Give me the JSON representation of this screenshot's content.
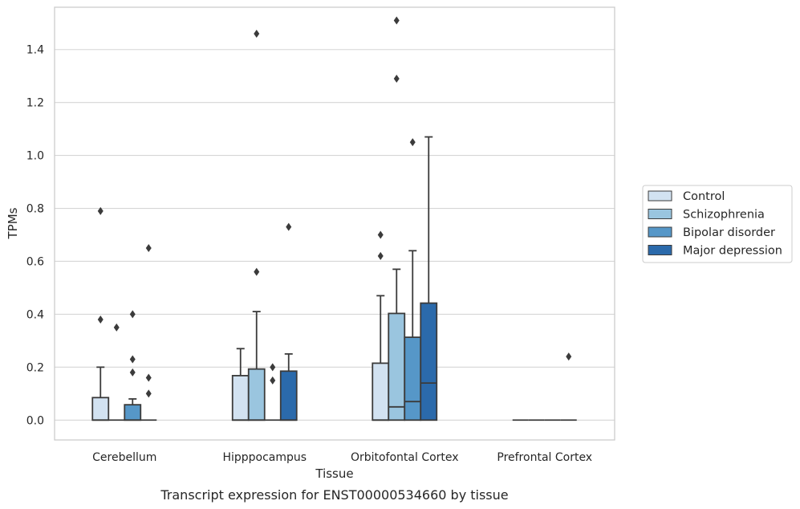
{
  "caption": "Transcript expression for ENST00000534660 by tissue",
  "chart_data": {
    "type": "box",
    "xlabel": "Tissue",
    "ylabel": "TPMs",
    "ylim": [
      -0.075,
      1.56
    ],
    "yticks": [
      "0.0",
      "0.2",
      "0.4",
      "0.6",
      "0.8",
      "1.0",
      "1.2",
      "1.4"
    ],
    "grid": "horizontal",
    "legend_position": "right",
    "categories": [
      "Cerebellum",
      "Hipppocampus",
      "Orbitofontal Cortex",
      "Prefrontal Cortex"
    ],
    "series": [
      {
        "name": "Control",
        "color": "#d2e2f1",
        "boxes": [
          {
            "q1": 0,
            "median": 0,
            "q3": 0.085,
            "whisker_low": 0,
            "whisker_high": 0.2,
            "outliers": [
              0.38,
              0.79
            ]
          },
          {
            "q1": 0,
            "median": 0,
            "q3": 0.168,
            "whisker_low": 0,
            "whisker_high": 0.27,
            "outliers": []
          },
          {
            "q1": 0,
            "median": 0,
            "q3": 0.215,
            "whisker_low": 0,
            "whisker_high": 0.47,
            "outliers": [
              0.62,
              0.7
            ]
          },
          {
            "q1": 0,
            "median": 0,
            "q3": 0,
            "whisker_low": 0,
            "whisker_high": 0,
            "outliers": []
          }
        ]
      },
      {
        "name": "Schizophrenia",
        "color": "#9ac5df",
        "boxes": [
          {
            "q1": 0,
            "median": 0,
            "q3": 0,
            "whisker_low": 0,
            "whisker_high": 0,
            "outliers": [
              0.35
            ]
          },
          {
            "q1": 0,
            "median": 0,
            "q3": 0.193,
            "whisker_low": 0,
            "whisker_high": 0.41,
            "outliers": [
              0.56,
              1.46
            ]
          },
          {
            "q1": 0,
            "median": 0.05,
            "q3": 0.403,
            "whisker_low": 0,
            "whisker_high": 0.57,
            "outliers": [
              1.29,
              1.51
            ]
          },
          {
            "q1": 0,
            "median": 0,
            "q3": 0,
            "whisker_low": 0,
            "whisker_high": 0,
            "outliers": []
          }
        ]
      },
      {
        "name": "Bipolar disorder",
        "color": "#5697c8",
        "boxes": [
          {
            "q1": 0,
            "median": 0,
            "q3": 0.058,
            "whisker_low": 0,
            "whisker_high": 0.08,
            "outliers": [
              0.18,
              0.23,
              0.4
            ]
          },
          {
            "q1": 0,
            "median": 0,
            "q3": 0,
            "whisker_low": 0,
            "whisker_high": 0,
            "outliers": [
              0.15,
              0.2
            ]
          },
          {
            "q1": 0,
            "median": 0.07,
            "q3": 0.313,
            "whisker_low": 0,
            "whisker_high": 0.64,
            "outliers": [
              1.05
            ]
          },
          {
            "q1": 0,
            "median": 0,
            "q3": 0,
            "whisker_low": 0,
            "whisker_high": 0,
            "outliers": []
          }
        ]
      },
      {
        "name": "Major depression",
        "color": "#2b6aab",
        "boxes": [
          {
            "q1": 0,
            "median": 0,
            "q3": 0,
            "whisker_low": 0,
            "whisker_high": 0,
            "outliers": [
              0.1,
              0.16,
              0.65
            ]
          },
          {
            "q1": 0,
            "median": 0,
            "q3": 0.185,
            "whisker_low": 0,
            "whisker_high": 0.25,
            "outliers": [
              0.73
            ]
          },
          {
            "q1": 0,
            "median": 0.14,
            "q3": 0.442,
            "whisker_low": 0,
            "whisker_high": 1.07,
            "outliers": []
          },
          {
            "q1": 0,
            "median": 0,
            "q3": 0,
            "whisker_low": 0,
            "whisker_high": 0,
            "outliers": [
              0.24
            ]
          }
        ]
      }
    ]
  }
}
